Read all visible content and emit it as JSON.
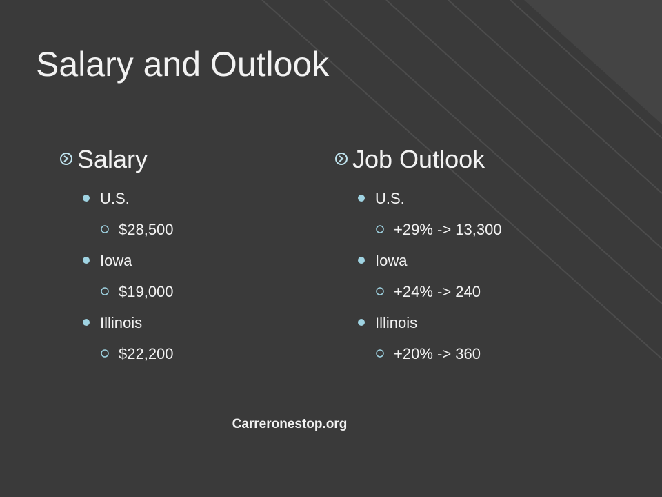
{
  "title": "Salary and Outlook",
  "columns": [
    {
      "heading": "Salary",
      "items": [
        {
          "label": "U.S.",
          "detail": "$28,500"
        },
        {
          "label": "Iowa",
          "detail": "$19,000"
        },
        {
          "label": "Illinois",
          "detail": "$22,200"
        }
      ]
    },
    {
      "heading": "Job Outlook",
      "items": [
        {
          "label": "U.S.",
          "detail": "+29% -> 13,300"
        },
        {
          "label": "Iowa",
          "detail": "+24% -> 240"
        },
        {
          "label": "Illinois",
          "detail": "+20% -> 360"
        }
      ]
    }
  ],
  "source": "Carreronestop.org"
}
